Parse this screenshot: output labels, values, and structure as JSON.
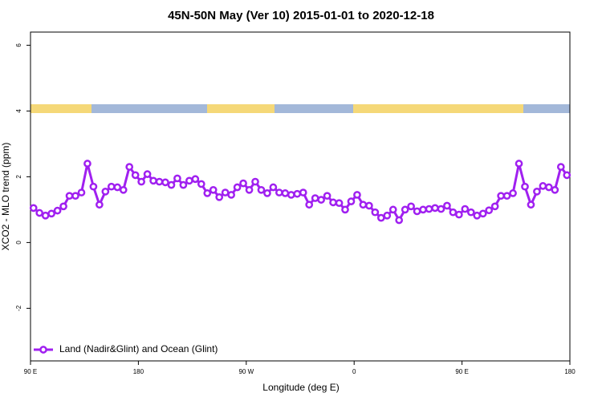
{
  "chart_data": {
    "type": "line",
    "title": "45N-50N May (Ver 10)   2015-01-01 to 2020-12-18",
    "x_label": "Longitude (deg E)",
    "y_label": "XCO2 - MLO trend (ppm)",
    "xlim": [
      90,
      540
    ],
    "ylim": [
      -3.6,
      6.4
    ],
    "xticks": [
      {
        "value": 90,
        "label": "90 E"
      },
      {
        "value": 180,
        "label": "180"
      },
      {
        "value": 270,
        "label": "90 W"
      },
      {
        "value": 360,
        "label": "0"
      },
      {
        "value": 450,
        "label": "90 E"
      },
      {
        "value": 540,
        "label": "180"
      }
    ],
    "yticks": [
      -2,
      0,
      2,
      4,
      6
    ],
    "grid": false,
    "legend": "bottom-left",
    "x": [
      92.5,
      97.5,
      102.5,
      107.5,
      112.5,
      117.5,
      122.5,
      127.5,
      132.5,
      137.5,
      142.5,
      147.5,
      152.5,
      157.5,
      162.5,
      167.5,
      172.5,
      177.5,
      182.5,
      187.5,
      192.5,
      197.5,
      202.5,
      207.5,
      212.5,
      217.5,
      222.5,
      227.5,
      232.5,
      237.5,
      242.5,
      247.5,
      252.5,
      257.5,
      262.5,
      267.5,
      272.5,
      277.5,
      282.5,
      287.5,
      292.5,
      297.5,
      302.5,
      307.5,
      312.5,
      317.5,
      322.5,
      327.5,
      332.5,
      337.5,
      342.5,
      347.5,
      352.5,
      357.5,
      362.5,
      367.5,
      372.5,
      377.5,
      382.5,
      387.5,
      392.5,
      397.5,
      402.5,
      407.5,
      412.5,
      417.5,
      422.5,
      427.5,
      432.5,
      437.5,
      442.5,
      447.5,
      452.5,
      457.5,
      462.5,
      467.5,
      472.5,
      477.5,
      482.5,
      487.5,
      492.5,
      497.5,
      502.5,
      507.5,
      512.5,
      517.5,
      522.5,
      527.5,
      532.5,
      537.5
    ],
    "series": [
      {
        "name": "Land (Nadir&Glint) and Ocean (Glint)",
        "color": "#a020f0",
        "values": [
          1.05,
          0.9,
          0.82,
          0.88,
          0.97,
          1.1,
          1.42,
          1.42,
          1.52,
          2.4,
          1.7,
          1.15,
          1.55,
          1.7,
          1.68,
          1.6,
          2.3,
          2.05,
          1.85,
          2.08,
          1.88,
          1.85,
          1.83,
          1.75,
          1.95,
          1.75,
          1.88,
          1.93,
          1.78,
          1.5,
          1.6,
          1.38,
          1.52,
          1.45,
          1.68,
          1.8,
          1.6,
          1.85,
          1.6,
          1.5,
          1.68,
          1.52,
          1.5,
          1.45,
          1.48,
          1.52,
          1.15,
          1.35,
          1.3,
          1.42,
          1.22,
          1.2,
          1.0,
          1.25,
          1.45,
          1.15,
          1.12,
          0.92,
          0.75,
          0.82,
          1.0,
          0.68,
          1.0,
          1.1,
          0.95,
          1.0,
          1.02,
          1.05,
          1.02,
          1.12,
          0.92,
          0.85,
          1.02,
          0.92,
          0.82,
          0.88,
          0.98,
          1.1,
          1.42,
          1.42,
          1.5,
          2.4,
          1.7,
          1.15,
          1.55,
          1.72,
          1.68,
          1.6,
          2.3,
          2.05
        ]
      }
    ]
  }
}
